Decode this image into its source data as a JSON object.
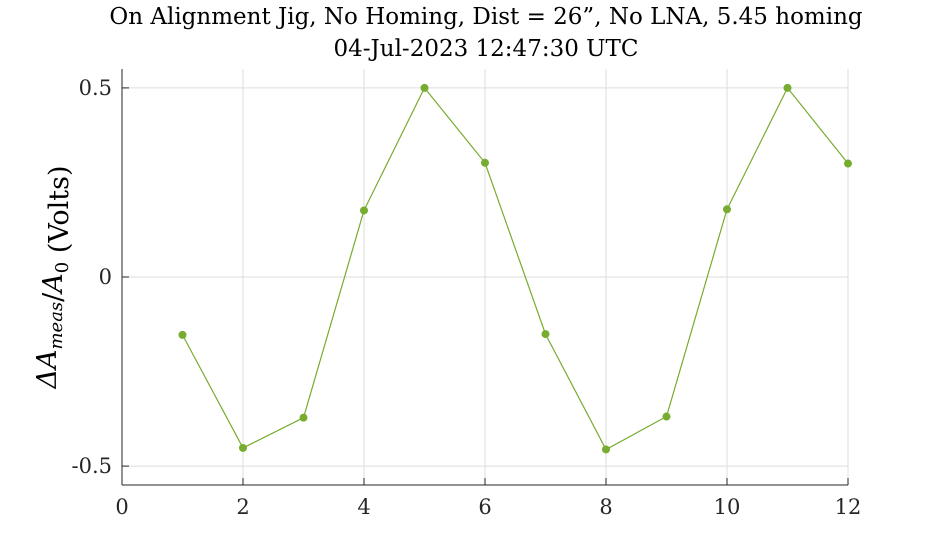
{
  "chart_data": {
    "type": "line",
    "title": "On Alignment Jig, No Homing, Dist = 26”, No LNA, 5.45 homing",
    "subtitle": "04-Jul-2023 12:47:30 UTC",
    "xlabel": "",
    "ylabel": "ΔA_meas/A_0 (Volts)",
    "xlim": [
      0,
      12
    ],
    "ylim": [
      -0.55,
      0.55
    ],
    "x_ticks": [
      0,
      2,
      4,
      6,
      8,
      10,
      12
    ],
    "x_tick_labels": [
      "0",
      "2",
      "4",
      "6",
      "8",
      "10",
      "12"
    ],
    "y_ticks": [
      -0.5,
      0,
      0.5
    ],
    "y_tick_labels": [
      "-0.5",
      "0",
      "0.5"
    ],
    "grid": true,
    "colors": {
      "series": "#77AC30"
    },
    "series": [
      {
        "x": [
          1,
          2,
          3,
          4,
          5,
          6,
          7,
          8,
          9,
          10,
          11,
          12
        ],
        "values": [
          -0.153,
          -0.452,
          -0.372,
          0.176,
          0.5,
          0.302,
          -0.151,
          -0.456,
          -0.369,
          0.179,
          0.5,
          0.3
        ]
      }
    ]
  }
}
